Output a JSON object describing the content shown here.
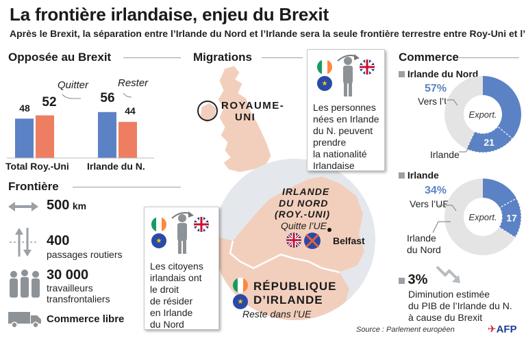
{
  "title": "La frontière irlandaise, enjeu du Brexit",
  "subtitle": "Après le Brexit, la séparation entre l’Irlande du Nord et l’Irlande sera la seule frontière terrestre entre Roy-Uni et l’UE",
  "colors": {
    "blue": "#5b82c4",
    "salmon": "#ee7e61",
    "land": "#f2cfbd",
    "gray": "#9aa0a6",
    "donut_gray": "#e4e4e4"
  },
  "brexit": {
    "heading": "Opposée au Brexit",
    "legend_quitter": "Quitter",
    "legend_rester": "Rester",
    "labels": [
      "Total Roy.-Uni",
      "Irlande du N."
    ],
    "values": {
      "total_rester": "48",
      "total_quitter": "52",
      "ni_rester": "56",
      "ni_quitter": "44"
    }
  },
  "frontiere": {
    "heading": "Frontière",
    "km_value": "500",
    "km_unit": "km",
    "passages_value": "400",
    "passages_label": "passages routiers",
    "workers_value": "30 000",
    "workers_label1": "travailleurs",
    "workers_label2": "transfrontaliers",
    "commerce": "Commerce libre"
  },
  "migrations": {
    "heading": "Migrations",
    "uk_label1": "ROYAUME-",
    "uk_label2": "UNI",
    "card1_lines": [
      "Les personnes",
      "nées en Irlande",
      "du N. peuvent",
      "prendre",
      "la nationalité",
      "Irlandaise"
    ],
    "card2_lines": [
      "Les citoyens",
      "irlandais ont",
      "le droit",
      "de résider",
      "en Irlande",
      "du Nord"
    ]
  },
  "map": {
    "ni_label": [
      "IRLANDE",
      "DU NORD",
      "(ROY.-UNI)"
    ],
    "ni_status": "Quitte l’UE",
    "belfast": "Belfast",
    "roi_label": [
      "RÉPUBLIQUE",
      "D’IRLANDE"
    ],
    "roi_status": "Reste dans l’UE"
  },
  "commerce": {
    "heading": "Commerce",
    "ni_heading": "Irlande du Nord",
    "ni_pct": "57%",
    "ni_pct_label": "Vers l’UE",
    "ni_center": "Export.",
    "ni_value": "21",
    "ni_value_label": "Irlande",
    "ie_heading": "Irlande",
    "ie_pct": "34%",
    "ie_pct_label": "Vers l’UE",
    "ie_center": "Export.",
    "ie_value": "17",
    "ie_value_label1": "Irlande",
    "ie_value_label2": "du Nord",
    "gdp_value": "3%",
    "gdp_lines": [
      "Diminution estimée",
      "du PIB de l’Irlande du N.",
      "à cause du Brexit"
    ]
  },
  "chart_data": [
    {
      "type": "bar",
      "title": "Opposée au Brexit",
      "categories": [
        "Total Roy.-Uni",
        "Irlande du N."
      ],
      "series": [
        {
          "name": "Rester",
          "values": [
            48,
            56
          ]
        },
        {
          "name": "Quitter",
          "values": [
            52,
            44
          ]
        }
      ]
    },
    {
      "type": "pie",
      "title": "Irlande du Nord",
      "segments": [
        {
          "name": "Vers l’UE",
          "value": 57
        },
        {
          "name": "Irlande",
          "value": 21
        }
      ]
    },
    {
      "type": "pie",
      "title": "Irlande",
      "segments": [
        {
          "name": "Vers l’UE",
          "value": 34
        },
        {
          "name": "Irlande du Nord",
          "value": 17
        }
      ]
    }
  ],
  "source": "Source : Parlement européen",
  "logo": "AFP"
}
